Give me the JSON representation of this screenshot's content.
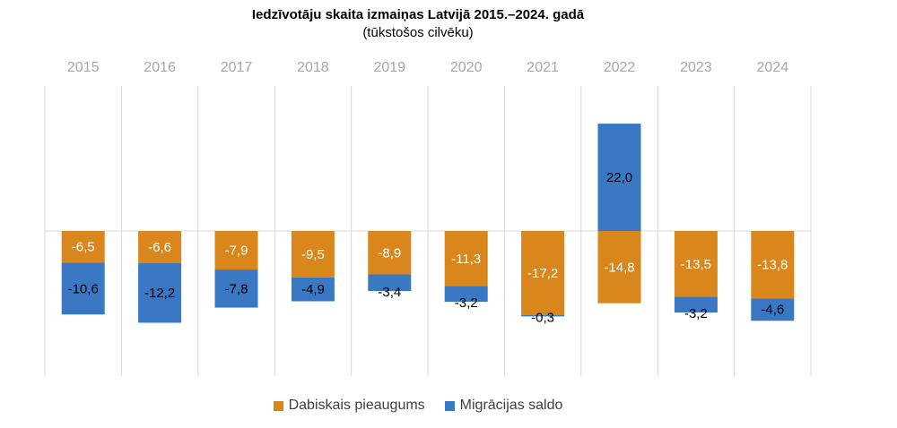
{
  "chart_data": {
    "type": "bar",
    "stacked": true,
    "title": "Iedzīvotāju skaita izmaiņas Latvijā 2015.–2024. gadā",
    "subtitle": "(tūkstošos cilvēku)",
    "categories": [
      "2015",
      "2016",
      "2017",
      "2018",
      "2019",
      "2020",
      "2021",
      "2022",
      "2023",
      "2024"
    ],
    "series": [
      {
        "name": "Dabiskais pieaugums",
        "color": "#d9861d",
        "values": [
          -6.5,
          -6.6,
          -7.9,
          -9.5,
          -8.9,
          -11.3,
          -17.2,
          -14.8,
          -13.5,
          -13.8
        ],
        "labels": [
          "-6,5",
          "-6,6",
          "-7,9",
          "-9,5",
          "-8,9",
          "-11,3",
          "-17,2",
          "-14,8",
          "-13,5",
          "-13,8"
        ]
      },
      {
        "name": "Migrācijas saldo",
        "color": "#3a78c4",
        "values": [
          -10.6,
          -12.2,
          -7.8,
          -4.9,
          -3.4,
          -3.2,
          -0.3,
          22.0,
          -3.2,
          -4.6
        ],
        "labels": [
          "-10,6",
          "-12,2",
          "-7,8",
          "-4,9",
          "-3,4",
          "-3,2",
          "-0,3",
          "22,0",
          "-3,2",
          "-4,6"
        ]
      }
    ],
    "ylim": [
      -29,
      29
    ],
    "xaxis_position": "top",
    "grid": "vertical category dividers",
    "legend_position": "bottom"
  }
}
